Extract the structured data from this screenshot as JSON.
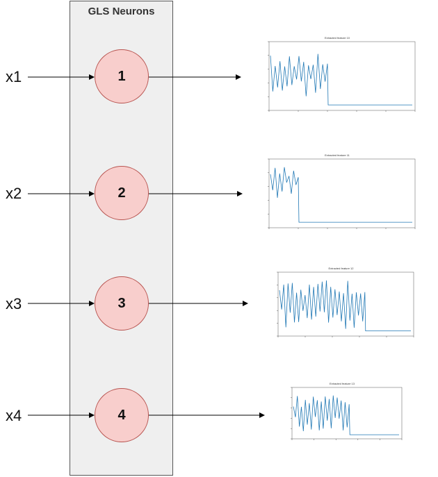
{
  "diagram": {
    "title": "GLS Neurons",
    "rows": [
      {
        "input": "x1",
        "neuron": "1",
        "plot_title": "Extracted feature 10"
      },
      {
        "input": "x2",
        "neuron": "2",
        "plot_title": "Extracted feature 11"
      },
      {
        "input": "x3",
        "neuron": "3",
        "plot_title": "Extracted feature 12"
      },
      {
        "input": "x4",
        "neuron": "4",
        "plot_title": "Extracted feature 13"
      }
    ]
  },
  "colors": {
    "box_fill": "#efefef",
    "neuron_fill": "#f8cecc",
    "neuron_stroke": "#b85450",
    "plot_line": "#1f77b4"
  }
}
